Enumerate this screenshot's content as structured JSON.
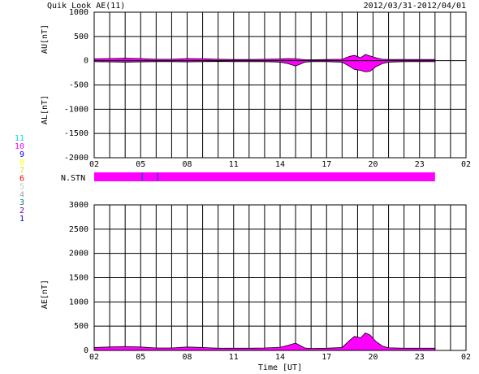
{
  "title": "Quik Look AE(11)",
  "date": "2012/03/31-2012/04/01",
  "xlabel": "Time [UT]",
  "stations": [
    {
      "label": "11",
      "color": "#00e0e0"
    },
    {
      "label": "10",
      "color": "#ff00ff"
    },
    {
      "label": "9",
      "color": "#0000ff"
    },
    {
      "label": "8",
      "color": "#ffff00"
    },
    {
      "label": "7",
      "color": "#c8e632"
    },
    {
      "label": "6",
      "color": "#ff0000"
    },
    {
      "label": "5",
      "color": "#c8c8c8"
    },
    {
      "label": "4",
      "color": "#a0a0a0"
    },
    {
      "label": "3",
      "color": "#008080"
    },
    {
      "label": "2",
      "color": "#800080"
    },
    {
      "label": "1",
      "color": "#0000c8"
    }
  ],
  "nstn": {
    "label": "N.STN",
    "color": "#ff00ff",
    "xrange": [
      2,
      24
    ],
    "markers": [
      5.1,
      6.1
    ],
    "marker_color": "#4040c0"
  },
  "chart_data": [
    {
      "type": "area",
      "ylabels": [
        "AU[nT]",
        "AL[nT]"
      ],
      "x": [
        2,
        3,
        4,
        5,
        6,
        7,
        8,
        9,
        10,
        11,
        12,
        13,
        14,
        14.5,
        15,
        15.3,
        15.6,
        16,
        17,
        18,
        18.5,
        18.8,
        19.2,
        19.5,
        19.8,
        20.2,
        20.6,
        21,
        22,
        23,
        24
      ],
      "series": [
        {
          "name": "AU",
          "color": "#ff00ff",
          "values": [
            40,
            45,
            50,
            45,
            30,
            30,
            45,
            40,
            30,
            25,
            25,
            30,
            35,
            45,
            40,
            30,
            20,
            20,
            25,
            30,
            90,
            110,
            60,
            130,
            100,
            60,
            30,
            25,
            25,
            25,
            25
          ]
        },
        {
          "name": "AL",
          "color": "#ff00ff",
          "values": [
            -20,
            -25,
            -30,
            -25,
            -20,
            -20,
            -25,
            -20,
            -15,
            -20,
            -20,
            -20,
            -30,
            -60,
            -110,
            -70,
            -30,
            -20,
            -20,
            -30,
            -120,
            -180,
            -200,
            -230,
            -220,
            -120,
            -60,
            -30,
            -20,
            -20,
            -20
          ]
        }
      ],
      "xlim": [
        2,
        26
      ],
      "xgrid": [
        2,
        3,
        4,
        5,
        6,
        7,
        8,
        9,
        10,
        11,
        12,
        13,
        14,
        15,
        16,
        17,
        18,
        19,
        20,
        21,
        22,
        23,
        24,
        25,
        26
      ],
      "xticks": [
        {
          "value": 2,
          "label": "02"
        },
        {
          "value": 5,
          "label": "05"
        },
        {
          "value": 8,
          "label": "08"
        },
        11,
        14,
        17,
        20,
        23,
        {
          "value": 26,
          "label": "02"
        }
      ],
      "ylim": [
        -2000,
        1000
      ],
      "yticks": [
        1000,
        500,
        0,
        -500,
        -1000,
        -1500,
        -2000
      ]
    },
    {
      "type": "area",
      "ylabels": [
        "AE[nT]"
      ],
      "x": [
        2,
        3,
        4,
        5,
        6,
        7,
        8,
        9,
        10,
        11,
        12,
        13,
        14,
        14.5,
        15,
        15.3,
        15.6,
        16,
        17,
        18,
        18.5,
        18.8,
        19.2,
        19.5,
        19.8,
        20.2,
        20.6,
        21,
        22,
        23,
        24
      ],
      "series": [
        {
          "name": "AE",
          "color": "#ff00ff",
          "values": [
            60,
            70,
            80,
            70,
            50,
            50,
            70,
            60,
            45,
            45,
            45,
            50,
            65,
            105,
            150,
            100,
            50,
            40,
            45,
            60,
            210,
            290,
            260,
            360,
            320,
            180,
            90,
            55,
            45,
            45,
            45
          ]
        }
      ],
      "xlim": [
        2,
        26
      ],
      "xgrid": [
        2,
        3,
        4,
        5,
        6,
        7,
        8,
        9,
        10,
        11,
        12,
        13,
        14,
        15,
        16,
        17,
        18,
        19,
        20,
        21,
        22,
        23,
        24,
        25,
        26
      ],
      "xticks": [
        {
          "value": 2,
          "label": "02"
        },
        {
          "value": 5,
          "label": "05"
        },
        {
          "value": 8,
          "label": "08"
        },
        11,
        14,
        17,
        20,
        23,
        {
          "value": 26,
          "label": "02"
        }
      ],
      "ylim": [
        0,
        3000
      ],
      "yticks": [
        3000,
        2500,
        2000,
        1500,
        1000,
        500,
        0
      ]
    }
  ]
}
